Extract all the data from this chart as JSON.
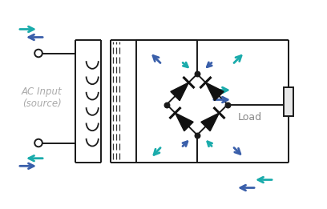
{
  "bg_color": "#ffffff",
  "line_color": "#1a1a1a",
  "diode_color": "#111111",
  "arrow_teal": "#1aabab",
  "arrow_blue": "#3a5faa",
  "ac_text": "AC Input\n(source)",
  "load_text": "Load",
  "text_color_ac": "#aaaaaa",
  "text_color_load": "#888888",
  "figsize": [
    4.08,
    2.61
  ],
  "dpi": 100,
  "xlim": [
    0,
    10.2
  ],
  "ylim": [
    0,
    6.4
  ]
}
